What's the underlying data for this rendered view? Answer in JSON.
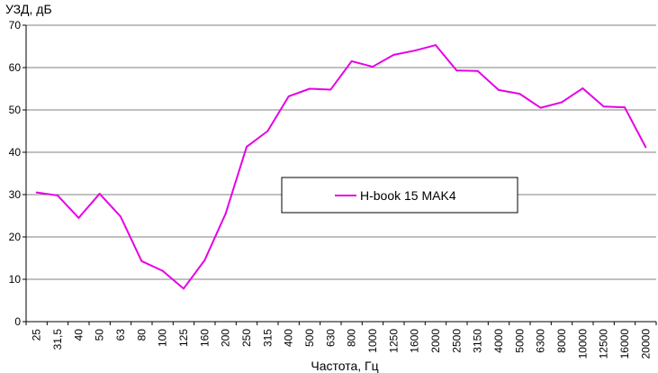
{
  "chart_data": {
    "type": "line",
    "title": "",
    "ylabel": "УЗД, дБ",
    "xlabel": "Частота, Гц",
    "ylim": [
      0,
      70
    ],
    "yticks": [
      0,
      10,
      20,
      30,
      40,
      50,
      60,
      70
    ],
    "grid": true,
    "legend_position": "center",
    "categories": [
      "25",
      "31,5",
      "40",
      "50",
      "63",
      "80",
      "100",
      "125",
      "160",
      "200",
      "250",
      "315",
      "400",
      "500",
      "630",
      "800",
      "1000",
      "1250",
      "1600",
      "2000",
      "2500",
      "3150",
      "4000",
      "5000",
      "6300",
      "8000",
      "10000",
      "12500",
      "16000",
      "20000"
    ],
    "series": [
      {
        "name": "H-book 15 MAK4",
        "color": "#e600e6",
        "values": [
          30.5,
          29.8,
          24.5,
          30.2,
          24.8,
          14.3,
          12.0,
          7.8,
          14.5,
          25.5,
          41.3,
          45.0,
          53.2,
          55.0,
          54.8,
          61.5,
          60.2,
          63.0,
          64.0,
          65.3,
          59.3,
          59.2,
          54.7,
          53.8,
          50.5,
          51.8,
          55.1,
          50.8,
          50.6,
          41.2
        ]
      }
    ]
  }
}
